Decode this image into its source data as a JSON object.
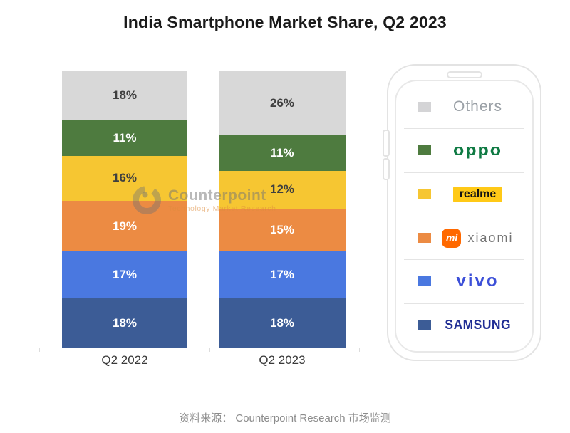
{
  "title": "India Smartphone Market Share, Q2 2023",
  "caption": "资料来源： Counterpoint Research 市场监测",
  "watermark": {
    "brand": "Counterpoint",
    "tagline": "Technology Market Research"
  },
  "colors": {
    "title_text": "#1a1a1a",
    "axis_line": "#dcdcdc",
    "category_label": "#3a3a3a",
    "caption_text": "#8c8c8c",
    "others_gray_text": "#9aa0a6",
    "oppo_green": "#0f7a43",
    "realme_badge": "#ffc917",
    "realme_text": "#141414",
    "xiaomi_orange": "#ff6900",
    "xiaomi_text": "#737373",
    "vivo_blue": "#3d50d8",
    "samsung_navy": "#1f2d94",
    "watermark_gray": "rgba(115,115,115,0.5)",
    "watermark_orange": "rgba(223,140,60,0.55)"
  },
  "chart_data": {
    "type": "bar",
    "stacked": true,
    "title": "India Smartphone Market Share, Q2 2023",
    "categories": [
      "Q2 2022",
      "Q2 2023"
    ],
    "value_suffix": "%",
    "legend_position": "right",
    "series": [
      {
        "name": "Samsung",
        "color": "#3c5c96",
        "label_color": "#ffffff",
        "values": [
          18,
          18
        ]
      },
      {
        "name": "vivo",
        "color": "#4a78e0",
        "label_color": "#ffffff",
        "values": [
          17,
          17
        ]
      },
      {
        "name": "Xiaomi",
        "color": "#ec8b43",
        "label_color": "#ffffff",
        "values": [
          19,
          15
        ]
      },
      {
        "name": "realme",
        "color": "#f6c632",
        "label_color": "#3f3f3f",
        "values": [
          16,
          12
        ]
      },
      {
        "name": "OPPO",
        "color": "#4e7b3f",
        "label_color": "#ffffff",
        "values": [
          11,
          11
        ]
      },
      {
        "name": "Others",
        "color": "#d8d8d8",
        "label_color": "#3f3f3f",
        "values": [
          18,
          26
        ]
      }
    ]
  },
  "legend": {
    "items": [
      {
        "name": "Others",
        "swatch": "#d4d4d6",
        "logo_text": "Others"
      },
      {
        "name": "OPPO",
        "swatch": "#4e7b3f",
        "logo_text": "oppo"
      },
      {
        "name": "realme",
        "swatch": "#f6c632",
        "logo_text": "realme"
      },
      {
        "name": "Xiaomi",
        "swatch": "#ec8b43",
        "logo_badge": "mi",
        "logo_text": "xiaomi"
      },
      {
        "name": "vivo",
        "swatch": "#4a78e0",
        "logo_text": "vivo"
      },
      {
        "name": "Samsung",
        "swatch": "#3c5c96",
        "logo_text": "SAMSUNG"
      }
    ]
  }
}
